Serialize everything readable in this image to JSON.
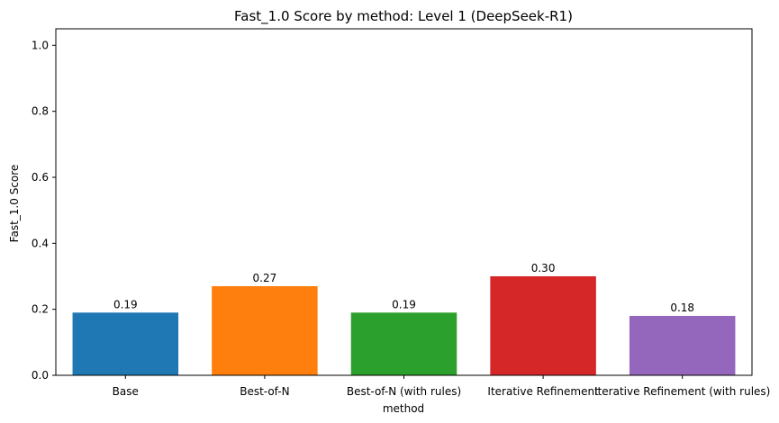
{
  "chart_data": {
    "type": "bar",
    "title": "Fast_1.0 Score by method: Level 1 (DeepSeek-R1)",
    "xlabel": "method",
    "ylabel": "Fast_1.0 Score",
    "categories": [
      "Base",
      "Best-of-N",
      "Best-of-N (with rules)",
      "Iterative Refinement",
      "Iterative Refinement (with rules)"
    ],
    "values": [
      0.19,
      0.27,
      0.19,
      0.3,
      0.18
    ],
    "value_labels": [
      "0.19",
      "0.27",
      "0.19",
      "0.30",
      "0.18"
    ],
    "colors": [
      "#1f77b4",
      "#ff7f0e",
      "#2ca02c",
      "#d62728",
      "#9467bd"
    ],
    "ylim": [
      0,
      1.05
    ],
    "yticks": [
      0.0,
      0.2,
      0.4,
      0.6,
      0.8,
      1.0
    ],
    "ytick_labels": [
      "0.0",
      "0.2",
      "0.4",
      "0.6",
      "0.8",
      "1.0"
    ],
    "grid": false,
    "legend": "none"
  }
}
